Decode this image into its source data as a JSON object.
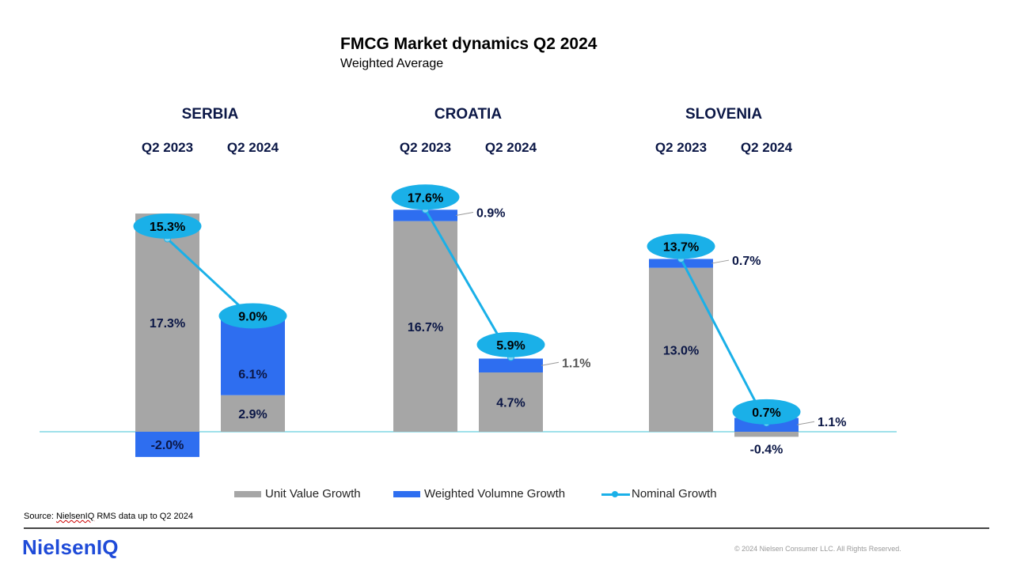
{
  "title": "FMCG Market dynamics Q2 2024",
  "subtitle": "Weighted Average",
  "colors": {
    "unit_value": "#a6a6a6",
    "weighted_volume": "#2e6ef0",
    "nominal": "#1ab0e8",
    "label_dark": "#0b1746",
    "baseline": "#3fc3d6"
  },
  "chart_data": {
    "type": "bar",
    "stacked": true,
    "title": "FMCG Market dynamics Q2 2024",
    "subtitle": "Weighted Average",
    "unit": "%",
    "series_names": [
      "Unit Value Growth",
      "Weighted Volumne Growth",
      "Nominal Growth"
    ],
    "groups": [
      {
        "country": "SERBIA",
        "periods": [
          "Q2 2023",
          "Q2 2024"
        ],
        "unit_value": [
          17.3,
          2.9
        ],
        "weighted_volume": [
          -2.0,
          6.1
        ],
        "nominal": [
          15.3,
          9.0
        ],
        "unit_value_labels": [
          "17.3%",
          "2.9%"
        ],
        "volume_labels": [
          "-2.0%",
          "6.1%"
        ],
        "nominal_labels": [
          "15.3%",
          "9.0%"
        ]
      },
      {
        "country": "CROATIA",
        "periods": [
          "Q2 2023",
          "Q2 2024"
        ],
        "unit_value": [
          16.7,
          4.7
        ],
        "weighted_volume": [
          0.9,
          1.1
        ],
        "nominal": [
          17.6,
          5.9
        ],
        "unit_value_labels": [
          "16.7%",
          "4.7%"
        ],
        "volume_labels": [
          "0.9%",
          "1.1%"
        ],
        "nominal_labels": [
          "17.6%",
          "5.9%"
        ]
      },
      {
        "country": "SLOVENIA",
        "periods": [
          "Q2 2023",
          "Q2 2024"
        ],
        "unit_value": [
          13.0,
          -0.4
        ],
        "weighted_volume": [
          0.7,
          1.1
        ],
        "nominal": [
          13.7,
          0.7
        ],
        "unit_value_labels": [
          "13.0%",
          "-0.4%"
        ],
        "volume_labels": [
          "0.7%",
          "1.1%"
        ],
        "nominal_labels": [
          "13.7%",
          "0.7%"
        ]
      }
    ],
    "legend": [
      "Unit Value Growth",
      "Weighted Volumne Growth",
      "Nominal Growth"
    ],
    "legend_position": "bottom"
  },
  "footer": {
    "source_prefix": "Source: ",
    "source_link": "NielsenIQ",
    "source_suffix": " RMS data up to Q2 2024",
    "brand": "NielsenIQ",
    "copyright": "© 2024 Nielsen Consumer LLC. All Rights Reserved."
  }
}
